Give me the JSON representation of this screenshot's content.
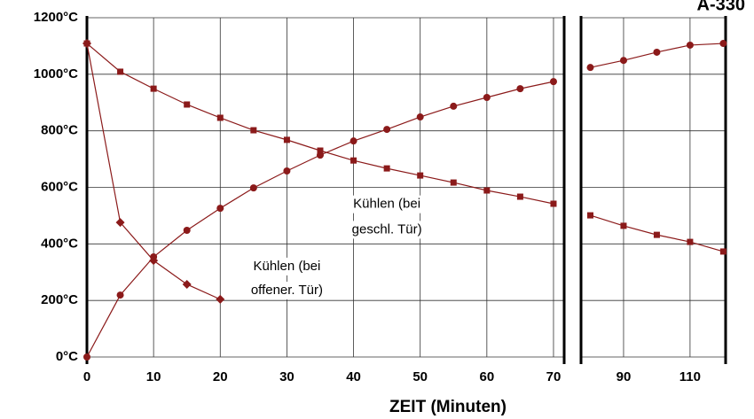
{
  "chart_data": {
    "type": "line",
    "title": "A-330",
    "x_label": "ZEIT (Minuten)",
    "ylim": [
      0,
      1200
    ],
    "yticks": [
      {
        "value": 0,
        "label": "0°C"
      },
      {
        "value": 200,
        "label": "200°C"
      },
      {
        "value": 400,
        "label": "400°C"
      },
      {
        "value": 600,
        "label": "600°C"
      },
      {
        "value": 800,
        "label": "800°C"
      },
      {
        "value": 1000,
        "label": "1000°C"
      },
      {
        "value": 1200,
        "label": "1200°C"
      }
    ],
    "grid": true,
    "annotations": [
      {
        "text": "Kühlen (bei",
        "x": 45,
        "y": 540
      },
      {
        "text": "geschl. Tür)",
        "x": 45,
        "y": 450
      },
      {
        "text": "Kühlen (bei",
        "x": 30,
        "y": 320
      },
      {
        "text": "offener. Tür)",
        "x": 30,
        "y": 235
      }
    ],
    "panels": [
      {
        "xlim": [
          0,
          71.6
        ],
        "xticks": [
          0,
          10,
          20,
          30,
          40,
          50,
          60,
          70
        ],
        "x": [
          0,
          5,
          10,
          15,
          20,
          25,
          30,
          35,
          40,
          45,
          50,
          55,
          60,
          65,
          70
        ],
        "series": [
          {
            "color": "#8b1a1a",
            "marker": "circle",
            "values": [
              0,
              219,
              354,
              448,
              526,
              598,
              658,
              714,
              764,
              805,
              849,
              887,
              918,
              949,
              974
            ]
          },
          {
            "color": "#8b1a1a",
            "marker": "square",
            "values": [
              1109,
              1009,
              949,
              893,
              846,
              802,
              768,
              730,
              695,
              667,
              642,
              617,
              589,
              567,
              542
            ]
          },
          {
            "color": "#8b1a1a",
            "marker": "diamond",
            "values": [
              1109,
              476,
              341,
              257,
              204,
              null,
              null,
              null,
              null,
              null,
              null,
              null,
              null,
              null,
              null
            ]
          }
        ]
      },
      {
        "xlim": [
          77.2,
          120.7
        ],
        "xticks": [
          90,
          110
        ],
        "x": [
          80,
          90,
          100,
          110,
          120
        ],
        "series": [
          {
            "color": "#8b1a1a",
            "marker": "circle",
            "values": [
              1024,
              1049,
              1078,
              1103,
              1109
            ]
          },
          {
            "color": "#8b1a1a",
            "marker": "square",
            "values": [
              501,
              464,
              432,
              407,
              373
            ]
          }
        ]
      }
    ]
  }
}
